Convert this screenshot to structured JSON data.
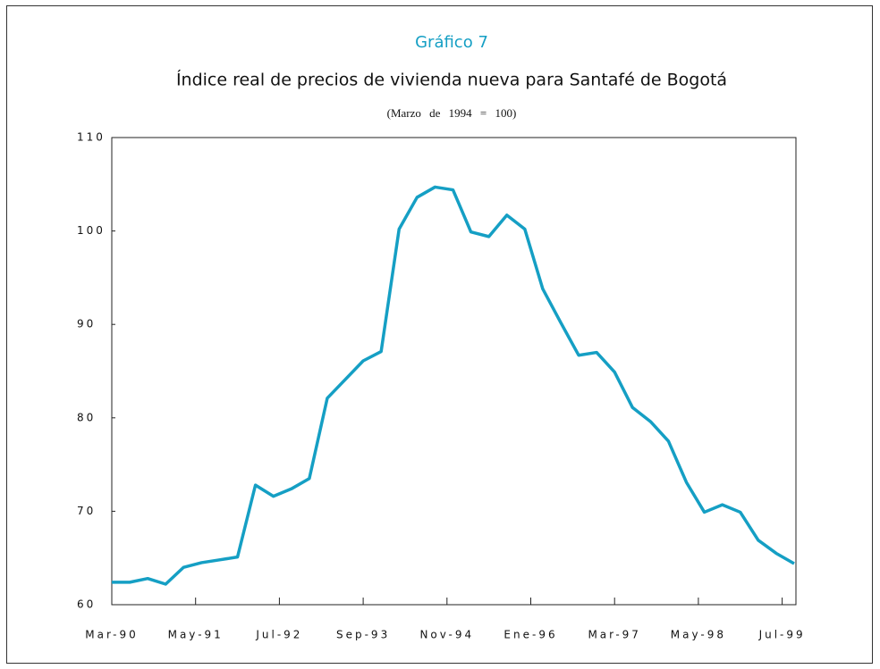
{
  "chart_data": {
    "type": "line",
    "label": "Gráfico 7",
    "title": "Índice real de precios de vivienda nueva para Santafé de Bogotá",
    "subtitle": "(Marzo de 1994 = 100)",
    "x": [
      "1990-03",
      "1990-06",
      "1990-09",
      "1990-12",
      "1991-03",
      "1991-06",
      "1991-09",
      "1991-12",
      "1992-03",
      "1992-06",
      "1992-09",
      "1992-12",
      "1993-03",
      "1993-06",
      "1993-09",
      "1993-12",
      "1994-03",
      "1994-06",
      "1994-09",
      "1994-12",
      "1995-03",
      "1995-06",
      "1995-09",
      "1995-12",
      "1996-03",
      "1996-06",
      "1996-09",
      "1996-12",
      "1997-03",
      "1997-06",
      "1997-09",
      "1997-12",
      "1998-03",
      "1998-06",
      "1998-09",
      "1998-12",
      "1999-03",
      "1999-06",
      "1999-09"
    ],
    "series": [
      {
        "color": "#159fc4",
        "values": [
          62.4,
          62.4,
          62.8,
          62.2,
          64.0,
          64.5,
          64.8,
          65.1,
          72.8,
          71.6,
          72.4,
          73.5,
          82.1,
          84.1,
          86.1,
          87.1,
          100.2,
          103.6,
          104.7,
          104.4,
          99.9,
          99.4,
          101.7,
          100.2,
          93.8,
          90.2,
          86.7,
          87.0,
          84.9,
          81.1,
          79.6,
          77.5,
          73.1,
          69.9,
          70.7,
          69.9,
          66.9,
          65.5,
          64.4
        ]
      }
    ],
    "xlim": [
      "1990-03",
      "1999-09"
    ],
    "xticks": [
      {
        "value": "1990-03",
        "label": "Mar-90"
      },
      {
        "value": "1991-05",
        "label": "May-91"
      },
      {
        "value": "1992-07",
        "label": "Jul-92"
      },
      {
        "value": "1993-09",
        "label": "Sep-93"
      },
      {
        "value": "1994-11",
        "label": "Nov-94"
      },
      {
        "value": "1996-01",
        "label": "Ene-96"
      },
      {
        "value": "1997-03",
        "label": "Mar-97"
      },
      {
        "value": "1998-05",
        "label": "May-98"
      },
      {
        "value": "1999-07",
        "label": "Jul-99"
      }
    ],
    "ylim": [
      60,
      110
    ],
    "yticks": [
      60,
      70,
      80,
      90,
      100,
      110
    ]
  }
}
